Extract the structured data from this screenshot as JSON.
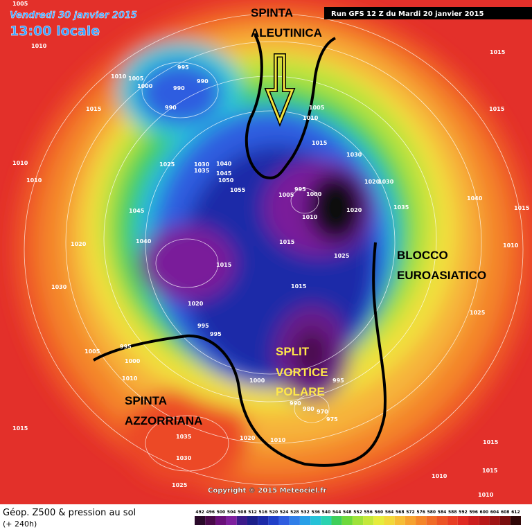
{
  "header": {
    "date": "Vendredi 30 janvier 2015",
    "time": "13:00 locale",
    "run": "Run GFS 12 Z du Mardi 20 janvier 2015"
  },
  "annotations": {
    "aleutian": [
      "SPINTA",
      "ALEUTINICA"
    ],
    "eurasian_block": [
      "BLOCCO",
      "EUROASIATICO"
    ],
    "polar_vortex": [
      "SPLIT",
      "VORTICE",
      "POLARE"
    ],
    "azores": [
      "SPINTA",
      "AZZORRIANA"
    ]
  },
  "footer": {
    "title": "Géop. Z500 & pression au sol",
    "lead": "(+ 240h)",
    "copyright": "Copyright © 2015 Meteociel.fr"
  },
  "scale": {
    "labels": [
      "492",
      "496",
      "500",
      "504",
      "508",
      "512",
      "516",
      "520",
      "524",
      "528",
      "532",
      "536",
      "540",
      "544",
      "548",
      "552",
      "556",
      "560",
      "564",
      "568",
      "572",
      "576",
      "580",
      "584",
      "588",
      "592",
      "596",
      "600",
      "604",
      "608",
      "612"
    ],
    "colors": [
      "#2a0a2a",
      "#4a0a4a",
      "#6a107a",
      "#7e1f9e",
      "#3c1a8a",
      "#1c1f8a",
      "#1c2aa8",
      "#2040c8",
      "#2f5de0",
      "#2f7ee8",
      "#28a0e8",
      "#26c2d8",
      "#2bd3b0",
      "#3fcf5a",
      "#6ed93c",
      "#9ee23a",
      "#c4e83a",
      "#e6ec3c",
      "#f2d83a",
      "#f6bd36",
      "#f6a230",
      "#f4862a",
      "#f06c28",
      "#ec5426",
      "#e83e24",
      "#e02a22",
      "#cc1e1e",
      "#b81818",
      "#a01414",
      "#7a0e0e",
      "#300606"
    ]
  },
  "pressure_labels": [
    "1005",
    "1010",
    "1010",
    "1005",
    "1000",
    "995",
    "990",
    "990",
    "990",
    "1015",
    "1025",
    "1030",
    "1035",
    "1040",
    "1045",
    "1050",
    "1055",
    "1010",
    "1010",
    "1045",
    "1040",
    "1020",
    "1030",
    "1015",
    "1020",
    "995",
    "995",
    "995",
    "1005",
    "1000",
    "1010",
    "1015",
    "1035",
    "1030",
    "1025",
    "1020",
    "1000",
    "1005",
    "1010",
    "1015",
    "1030",
    "995",
    "1000",
    "1005",
    "1010",
    "1020",
    "1015",
    "1025",
    "1015",
    "1020",
    "1030",
    "1035",
    "1040",
    "1015",
    "1015",
    "1015",
    "1010",
    "1025",
    "995",
    "990",
    "980",
    "970",
    "975",
    "1010",
    "1015",
    "1015",
    "1010",
    "1010"
  ]
}
